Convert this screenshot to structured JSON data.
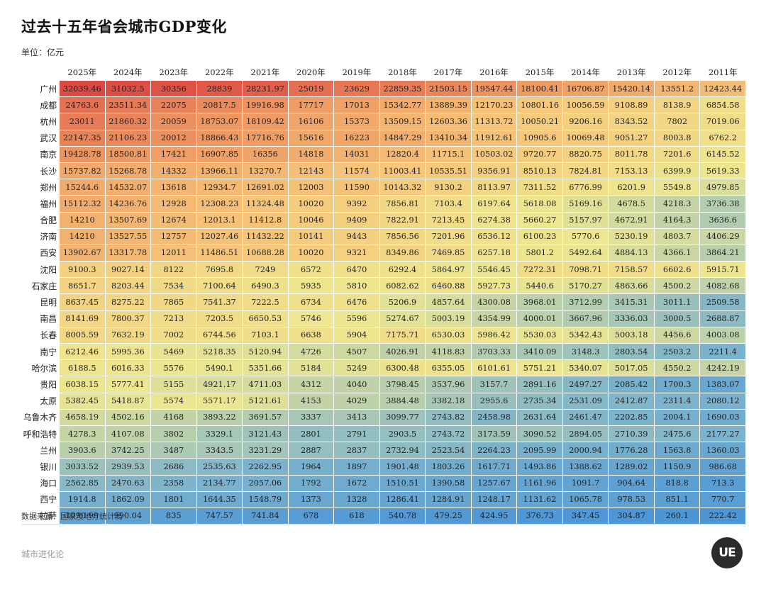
{
  "title": "过去十五年省会城市GDP变化",
  "unit_label": "单位：亿元",
  "source_label": "数据来源：国家及地方统计局",
  "footer_label": "城市进化论",
  "logo_text": "UE",
  "chart_data": {
    "type": "table",
    "title": "过去十五年省会城市GDP变化",
    "unit": "亿元",
    "color_scale": [
      "#4d96d6",
      "#7db3cc",
      "#eee790",
      "#f6c67a",
      "#ec9360",
      "#dc4a44"
    ],
    "columns": [
      "2025年",
      "2024年",
      "2023年",
      "2022年",
      "2021年",
      "2020年",
      "2019年",
      "2018年",
      "2017年",
      "2016年",
      "2015年",
      "2014年",
      "2013年",
      "2012年",
      "2011年"
    ],
    "rows": [
      {
        "city": "广州",
        "values": [
          "32039.46",
          "31032.5",
          "30356",
          "28839",
          "28231.97",
          "25019",
          "23629",
          "22859.35",
          "21503.15",
          "19547.44",
          "18100.41",
          "16706.87",
          "15420.14",
          "13551.2",
          "12423.44"
        ]
      },
      {
        "city": "成都",
        "values": [
          "24763.6",
          "23511.34",
          "22075",
          "20817.5",
          "19916.98",
          "17717",
          "17013",
          "15342.77",
          "13889.39",
          "12170.23",
          "10801.16",
          "10056.59",
          "9108.89",
          "8138.9",
          "6854.58"
        ]
      },
      {
        "city": "杭州",
        "values": [
          "23011",
          "21860.32",
          "20059",
          "18753.07",
          "18109.42",
          "16106",
          "15373",
          "13509.15",
          "12603.36",
          "11313.72",
          "10050.21",
          "9206.16",
          "8343.52",
          "7802",
          "7019.06"
        ]
      },
      {
        "city": "武汉",
        "values": [
          "22147.35",
          "21106.23",
          "20012",
          "18866.43",
          "17716.76",
          "15616",
          "16223",
          "14847.29",
          "13410.34",
          "11912.61",
          "10905.6",
          "10069.48",
          "9051.27",
          "8003.8",
          "6762.2"
        ]
      },
      {
        "city": "南京",
        "values": [
          "19428.78",
          "18500.81",
          "17421",
          "16907.85",
          "16356",
          "14818",
          "14031",
          "12820.4",
          "11715.1",
          "10503.02",
          "9720.77",
          "8820.75",
          "8011.78",
          "7201.6",
          "6145.52"
        ]
      },
      {
        "city": "长沙",
        "values": [
          "15737.82",
          "15268.78",
          "14332",
          "13966.11",
          "13270.7",
          "12143",
          "11574",
          "11003.41",
          "10535.51",
          "9356.91",
          "8510.13",
          "7824.81",
          "7153.13",
          "6399.9",
          "5619.33"
        ]
      },
      {
        "city": "郑州",
        "values": [
          "15244.6",
          "14532.07",
          "13618",
          "12934.7",
          "12691.02",
          "12003",
          "11590",
          "10143.32",
          "9130.2",
          "8113.97",
          "7311.52",
          "6776.99",
          "6201.9",
          "5549.8",
          "4979.85"
        ]
      },
      {
        "city": "福州",
        "values": [
          "15112.32",
          "14236.76",
          "12928",
          "12308.23",
          "11324.48",
          "10020",
          "9392",
          "7856.81",
          "7103.4",
          "6197.64",
          "5618.08",
          "5169.16",
          "4678.5",
          "4218.3",
          "3736.38"
        ]
      },
      {
        "city": "合肥",
        "values": [
          "14210",
          "13507.69",
          "12674",
          "12013.1",
          "11412.8",
          "10046",
          "9409",
          "7822.91",
          "7213.45",
          "6274.38",
          "5660.27",
          "5157.97",
          "4672.91",
          "4164.3",
          "3636.6"
        ]
      },
      {
        "city": "济南",
        "values": [
          "14210",
          "13527.55",
          "12757",
          "12027.46",
          "11432.22",
          "10141",
          "9443",
          "7856.56",
          "7201.96",
          "6536.12",
          "6100.23",
          "5770.6",
          "5230.19",
          "4803.7",
          "4406.29"
        ]
      },
      {
        "city": "西安",
        "values": [
          "13902.67",
          "13317.78",
          "12011",
          "11486.51",
          "10688.28",
          "10020",
          "9321",
          "8349.86",
          "7469.85",
          "6257.18",
          "5801.2",
          "5492.64",
          "4884.13",
          "4366.1",
          "3864.21"
        ]
      },
      {
        "city": "沈阳",
        "values": [
          "9100.3",
          "9027.14",
          "8122",
          "7695.8",
          "7249",
          "6572",
          "6470",
          "6292.4",
          "5864.97",
          "5546.45",
          "7272.31",
          "7098.71",
          "7158.57",
          "6602.6",
          "5915.71"
        ]
      },
      {
        "city": "石家庄",
        "values": [
          "8651.7",
          "8203.44",
          "7534",
          "7100.64",
          "6490.3",
          "5935",
          "5810",
          "6082.62",
          "6460.88",
          "5927.73",
          "5440.6",
          "5170.27",
          "4863.66",
          "4500.2",
          "4082.68"
        ]
      },
      {
        "city": "昆明",
        "values": [
          "8637.45",
          "8275.22",
          "7865",
          "7541.37",
          "7222.5",
          "6734",
          "6476",
          "5206.9",
          "4857.64",
          "4300.08",
          "3968.01",
          "3712.99",
          "3415.31",
          "3011.1",
          "2509.58"
        ]
      },
      {
        "city": "南昌",
        "values": [
          "8141.69",
          "7800.37",
          "7213",
          "7203.5",
          "6650.53",
          "5746",
          "5596",
          "5274.67",
          "5003.19",
          "4354.99",
          "4000.01",
          "3667.96",
          "3336.03",
          "3000.5",
          "2688.87"
        ]
      },
      {
        "city": "长春",
        "values": [
          "8005.59",
          "7632.19",
          "7002",
          "6744.56",
          "7103.1",
          "6638",
          "5904",
          "7175.71",
          "6530.03",
          "5986.42",
          "5530.03",
          "5342.43",
          "5003.18",
          "4456.6",
          "4003.08"
        ]
      },
      {
        "city": "南宁",
        "values": [
          "6212.46",
          "5995.36",
          "5469",
          "5218.35",
          "5120.94",
          "4726",
          "4507",
          "4026.91",
          "4118.83",
          "3703.33",
          "3410.09",
          "3148.3",
          "2803.54",
          "2503.2",
          "2211.4"
        ]
      },
      {
        "city": "哈尔滨",
        "values": [
          "6188.5",
          "6016.33",
          "5576",
          "5490.1",
          "5351.66",
          "5184",
          "5249",
          "6300.48",
          "6355.05",
          "6101.61",
          "5751.21",
          "5340.07",
          "5017.05",
          "4550.2",
          "4242.19"
        ]
      },
      {
        "city": "贵阳",
        "values": [
          "6038.15",
          "5777.41",
          "5155",
          "4921.17",
          "4711.03",
          "4312",
          "4040",
          "3798.45",
          "3537.96",
          "3157.7",
          "2891.16",
          "2497.27",
          "2085.42",
          "1700.3",
          "1383.07"
        ]
      },
      {
        "city": "太原",
        "values": [
          "5382.45",
          "5418.87",
          "5574",
          "5571.17",
          "5121.61",
          "4153",
          "4029",
          "3884.48",
          "3382.18",
          "2955.6",
          "2735.34",
          "2531.09",
          "2412.87",
          "2311.4",
          "2080.12"
        ]
      },
      {
        "city": "乌鲁木齐",
        "values": [
          "4658.19",
          "4502.16",
          "4168",
          "3893.22",
          "3691.57",
          "3337",
          "3413",
          "3099.77",
          "2743.82",
          "2458.98",
          "2631.64",
          "2461.47",
          "2202.85",
          "2004.1",
          "1690.03"
        ]
      },
      {
        "city": "呼和浩特",
        "values": [
          "4278.3",
          "4107.08",
          "3802",
          "3329.1",
          "3121.43",
          "2801",
          "2791",
          "2903.5",
          "2743.72",
          "3173.59",
          "3090.52",
          "2894.05",
          "2710.39",
          "2475.6",
          "2177.27"
        ]
      },
      {
        "city": "兰州",
        "values": [
          "3903.6",
          "3742.25",
          "3487",
          "3343.5",
          "3231.29",
          "2887",
          "2837",
          "2732.94",
          "2523.54",
          "2264.23",
          "2095.99",
          "2000.94",
          "1776.28",
          "1563.8",
          "1360.03"
        ]
      },
      {
        "city": "银川",
        "values": [
          "3033.52",
          "2939.53",
          "2686",
          "2535.63",
          "2262.95",
          "1964",
          "1897",
          "1901.48",
          "1803.26",
          "1617.71",
          "1493.86",
          "1388.62",
          "1289.02",
          "1150.9",
          "986.68"
        ]
      },
      {
        "city": "海口",
        "values": [
          "2562.85",
          "2470.63",
          "2358",
          "2134.77",
          "2057.06",
          "1792",
          "1672",
          "1510.51",
          "1390.58",
          "1257.67",
          "1161.96",
          "1091.7",
          "904.64",
          "818.8",
          "713.3"
        ]
      },
      {
        "city": "西宁",
        "values": [
          "1914.8",
          "1862.09",
          "1801",
          "1644.35",
          "1548.79",
          "1373",
          "1328",
          "1286.41",
          "1284.91",
          "1248.17",
          "1131.62",
          "1065.78",
          "978.53",
          "851.1",
          "770.7"
        ]
      },
      {
        "city": "拉萨",
        "values": [
          "1090.99",
          "990.04",
          "835",
          "747.57",
          "741.84",
          "678",
          "618",
          "540.78",
          "479.25",
          "424.95",
          "376.73",
          "347.45",
          "304.87",
          "260.1",
          "222.42"
        ]
      }
    ]
  }
}
